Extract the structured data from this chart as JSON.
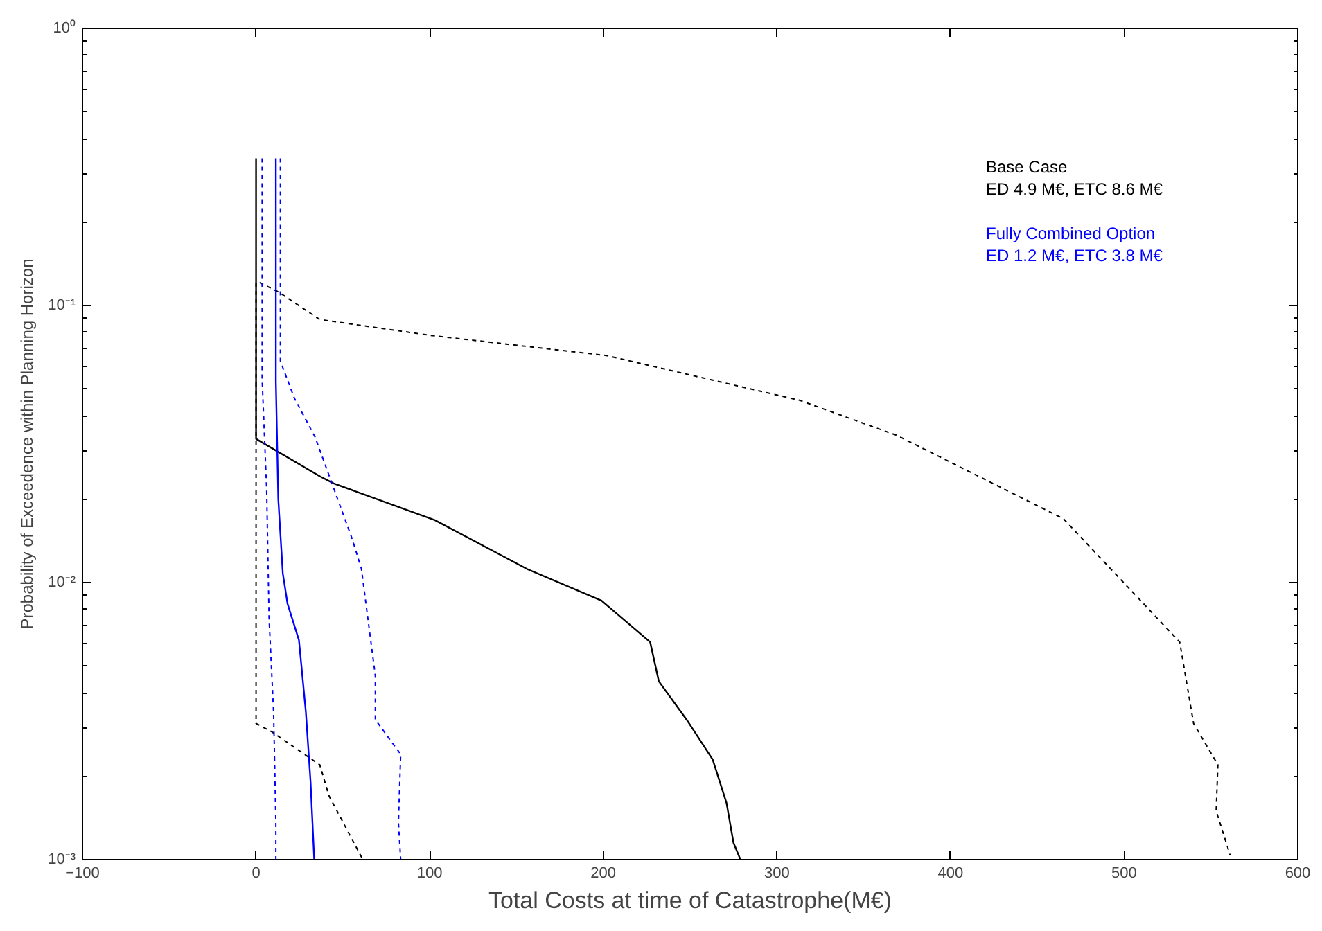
{
  "chart_data": {
    "type": "line",
    "xlabel": "Total Costs at time of Catastrophe(M€)",
    "ylabel": "Probability of Exceedence within Planning Horizon",
    "log": "y",
    "grid": false,
    "xlim": [
      -100,
      600
    ],
    "xticks": [
      -100,
      0,
      100,
      200,
      300,
      400,
      500,
      600
    ],
    "ylim": [
      0.001,
      1
    ],
    "yticks": [
      {
        "value": 0.001,
        "label": "10⁻³"
      },
      {
        "value": 0.01,
        "label": "10⁻²"
      },
      {
        "value": 0.1,
        "label": "10⁻¹"
      },
      {
        "value": 1,
        "label": "10⁰"
      }
    ],
    "series": [
      {
        "name": "Base Case\nED 4.9 M€, ETC  8.6 M€",
        "color": "#000000",
        "line_style": "solid",
        "x": [
          0,
          0,
          36.7,
          44.7,
          103,
          156,
          199,
          227,
          232,
          248,
          263,
          271,
          275,
          279
        ],
        "values": [
          0.34,
          0.033,
          0.0242,
          0.0228,
          0.0168,
          0.0112,
          0.0086,
          0.0061,
          0.0044,
          0.0032,
          0.0023,
          0.0016,
          0.00115,
          0.001
        ]
      },
      {
        "color": "#000000",
        "line_style": "dashed",
        "x": [
          2,
          12.8,
          36.7,
          100.6,
          201.7,
          313,
          369,
          465,
          532,
          540,
          554,
          553,
          561
        ],
        "values": [
          0.121,
          0.112,
          0.089,
          0.078,
          0.066,
          0.0455,
          0.034,
          0.017,
          0.0061,
          0.0031,
          0.0022,
          0.0015,
          0.00104
        ]
      },
      {
        "color": "#000000",
        "line_style": "dashed",
        "x": [
          0,
          0,
          8.8,
          36.7,
          42,
          61.5
        ],
        "values": [
          0.121,
          0.0031,
          0.0029,
          0.0022,
          0.0017,
          0.001
        ]
      },
      {
        "name": "Fully Combined Option\nED  1.2 M€, ETC 3.8 M€",
        "color": "#0000ff",
        "line_style": "solid",
        "x": [
          11.4,
          11.4,
          12.8,
          15.4,
          18.1,
          24.7,
          28.7,
          31.4,
          33.5
        ],
        "values": [
          0.34,
          0.053,
          0.02,
          0.0108,
          0.0084,
          0.0062,
          0.0034,
          0.0019,
          0.001
        ]
      },
      {
        "color": "#0000ff",
        "line_style": "dashed",
        "x": [
          3.5,
          3.5,
          6.1,
          7.5,
          10.1,
          11.4,
          11.4
        ],
        "values": [
          0.34,
          0.054,
          0.0216,
          0.0074,
          0.0034,
          0.00136,
          0.001
        ]
      },
      {
        "color": "#0000ff",
        "line_style": "dashed",
        "x": [
          14,
          14,
          22,
          34,
          55.3,
          60.7,
          68.7,
          68.7,
          83.3,
          82,
          83.3
        ],
        "values": [
          0.34,
          0.063,
          0.0464,
          0.0335,
          0.0144,
          0.0112,
          0.0046,
          0.0032,
          0.0024,
          0.00136,
          0.001
        ]
      }
    ]
  }
}
